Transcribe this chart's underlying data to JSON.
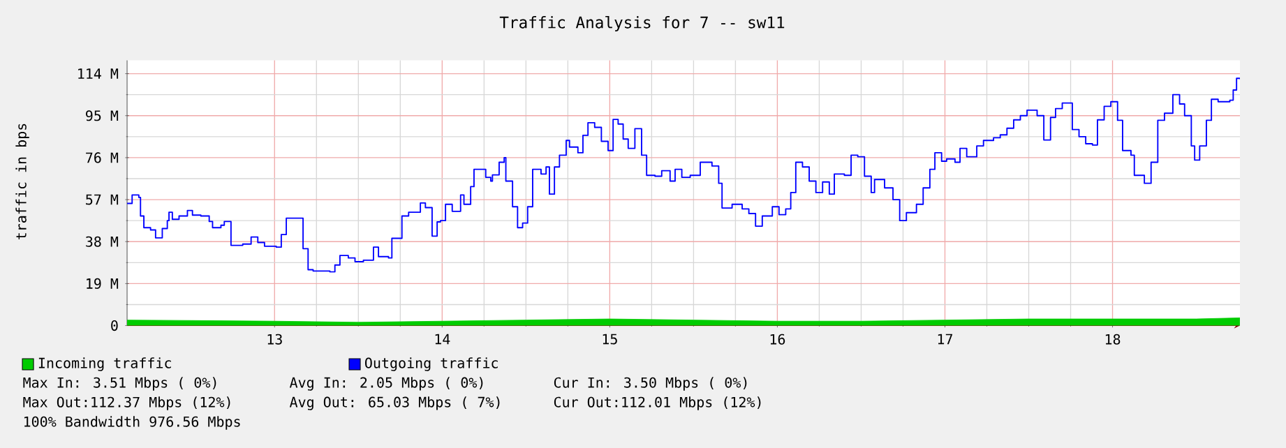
{
  "chart_data": {
    "type": "step",
    "title": "Traffic Analysis for 7 -- sw11",
    "ylabel": "traffic in bps",
    "xlim": [
      12.12,
      18.76
    ],
    "xticks": [
      13,
      14,
      15,
      16,
      17,
      18
    ],
    "ylim": [
      0,
      120
    ],
    "yticks": [
      {
        "value": 0,
        "label": "0"
      },
      {
        "value": 19,
        "label": "19 M"
      },
      {
        "value": 38,
        "label": "38 M"
      },
      {
        "value": 57,
        "label": "57 M"
      },
      {
        "value": 76,
        "label": "76 M"
      },
      {
        "value": 95,
        "label": "95 M"
      },
      {
        "value": 114,
        "label": "114 M"
      }
    ],
    "grid": true,
    "legend": "bottom",
    "series": [
      {
        "name": "Incoming traffic",
        "type": "area",
        "color": "#00cc00",
        "x": [
          12.12,
          12.5,
          13.0,
          13.5,
          14.0,
          14.5,
          15.0,
          15.5,
          16.0,
          16.5,
          17.0,
          17.5,
          18.0,
          18.5,
          18.76
        ],
        "values": [
          2.5,
          2.3,
          2.0,
          1.5,
          2.0,
          2.5,
          3.0,
          2.5,
          2.0,
          2.0,
          2.5,
          3.0,
          3.0,
          3.0,
          3.5
        ]
      },
      {
        "name": "Outgoing traffic",
        "color": "#0000ff",
        "x": [
          12.12,
          12.15,
          12.19,
          12.2,
          12.22,
          12.26,
          12.29,
          12.33,
          12.36,
          12.37,
          12.39,
          12.43,
          12.48,
          12.51,
          12.56,
          12.61,
          12.63,
          12.68,
          12.7,
          12.74,
          12.81,
          12.86,
          12.9,
          12.94,
          13.01,
          13.04,
          13.07,
          13.15,
          13.17,
          13.2,
          13.23,
          13.33,
          13.36,
          13.39,
          13.44,
          13.48,
          13.53,
          13.59,
          13.62,
          13.68,
          13.7,
          13.74,
          13.76,
          13.8,
          13.84,
          13.87,
          13.9,
          13.94,
          13.97,
          13.99,
          14.02,
          14.06,
          14.11,
          14.13,
          14.17,
          14.19,
          14.26,
          14.29,
          14.3,
          14.34,
          14.37,
          14.38,
          14.42,
          14.45,
          14.48,
          14.51,
          14.54,
          14.59,
          14.62,
          14.64,
          14.67,
          14.7,
          14.74,
          14.76,
          14.81,
          14.84,
          14.87,
          14.91,
          14.95,
          14.99,
          15.02,
          15.05,
          15.08,
          15.11,
          15.15,
          15.19,
          15.22,
          15.27,
          15.31,
          15.36,
          15.39,
          15.43,
          15.48,
          15.54,
          15.61,
          15.65,
          15.67,
          15.73,
          15.79,
          15.83,
          15.87,
          15.91,
          15.97,
          16.01,
          16.05,
          16.08,
          16.11,
          16.15,
          16.19,
          16.23,
          16.27,
          16.31,
          16.34,
          16.4,
          16.44,
          16.48,
          16.52,
          16.56,
          16.58,
          16.64,
          16.69,
          16.73,
          16.77,
          16.83,
          16.87,
          16.91,
          16.94,
          16.98,
          17.01,
          17.06,
          17.09,
          17.13,
          17.19,
          17.23,
          17.29,
          17.33,
          17.37,
          17.41,
          17.45,
          17.49,
          17.55,
          17.59,
          17.63,
          17.66,
          17.7,
          17.76,
          17.8,
          17.84,
          17.88,
          17.91,
          17.95,
          17.99,
          18.03,
          18.06,
          18.11,
          18.13,
          18.19,
          18.23,
          18.27,
          18.31,
          18.36,
          18.4,
          18.43,
          18.47,
          18.49,
          18.52,
          18.56,
          18.59,
          18.63,
          18.7,
          18.72,
          18.74,
          18.76
        ],
        "values": [
          55.3,
          59.1,
          58,
          49.6,
          44.3,
          43.3,
          39.7,
          43.9,
          47.5,
          51.3,
          48.1,
          49.6,
          52.1,
          50.0,
          49.6,
          47.1,
          44.3,
          45.4,
          47.1,
          36.3,
          36.9,
          40.1,
          37.6,
          35.9,
          35.5,
          41.2,
          48.6,
          48.6,
          34.8,
          25.3,
          24.7,
          24.3,
          27.4,
          31.7,
          30.6,
          28.9,
          29.6,
          35.5,
          31.2,
          30.6,
          39.5,
          39.5,
          49.6,
          51.3,
          51.3,
          55.5,
          53.4,
          40.5,
          46.9,
          47.5,
          54.9,
          51.7,
          59.1,
          54.9,
          62.9,
          70.7,
          67.1,
          65.4,
          68.2,
          73.9,
          76,
          65.4,
          53.8,
          44.3,
          46.4,
          53.8,
          70.7,
          68.6,
          71.8,
          59.5,
          71.8,
          77.1,
          83.8,
          80.8,
          78.2,
          86.1,
          91.8,
          89.7,
          83.4,
          79.2,
          93.3,
          91.2,
          84.4,
          80.2,
          89.1,
          77.1,
          68,
          67.6,
          70.1,
          65.4,
          70.7,
          67.1,
          68,
          73.9,
          72.2,
          64.4,
          53.2,
          54.9,
          52.8,
          50.7,
          45,
          49.6,
          53.8,
          50.2,
          52.8,
          60.2,
          73.9,
          71.8,
          65.4,
          60.2,
          65,
          59.5,
          68.6,
          68,
          77.1,
          76.4,
          67.6,
          60.2,
          66.1,
          62.3,
          57,
          47.5,
          51.1,
          54.9,
          62.3,
          70.7,
          78.2,
          74.4,
          75.4,
          73.9,
          80.2,
          76.4,
          81.3,
          83.8,
          85,
          86.3,
          89.3,
          93.1,
          95,
          97.5,
          95,
          84,
          94.2,
          98.2,
          100.7,
          88.7,
          85.5,
          82.3,
          81.7,
          93.1,
          99.2,
          101.3,
          92.9,
          79.2,
          77.1,
          68,
          64.4,
          73.9,
          92.9,
          96.1,
          104.5,
          100.3,
          95,
          81.3,
          74.9,
          81.3,
          92.9,
          102.4,
          101.3,
          102,
          106.6,
          111.9,
          111.5
        ]
      }
    ],
    "annotations": [
      "Max In: 3.51 Mbps ( 0%)",
      "Avg In: 2.05 Mbps ( 0%)",
      "Cur In: 3.50 Mbps ( 0%)",
      "Max Out:112.37 Mbps (12%)",
      "Avg Out: 65.03 Mbps ( 7%)",
      "Cur Out:112.01 Mbps (12%)",
      "100% Bandwidth 976.56 Mbps"
    ]
  }
}
